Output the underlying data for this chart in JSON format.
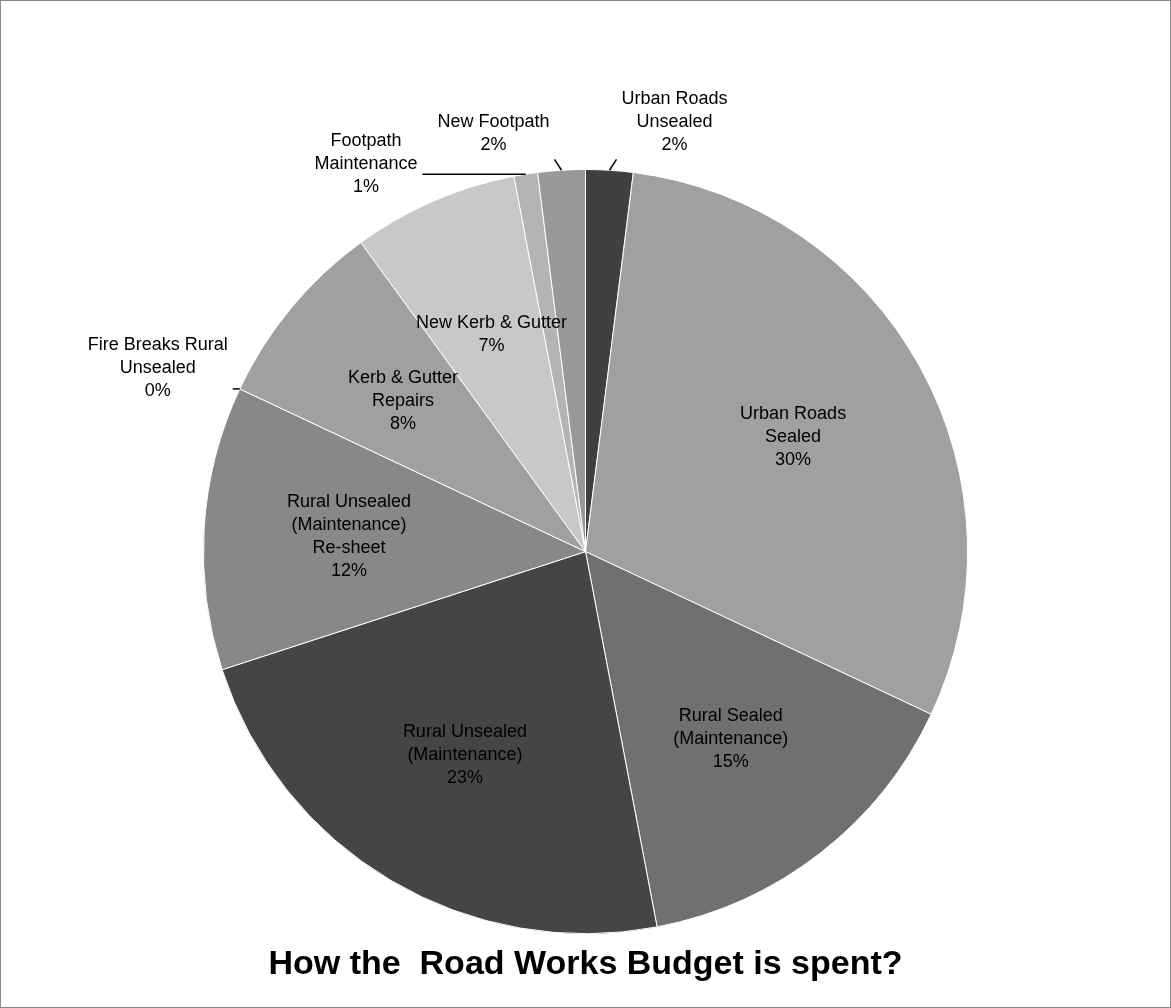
{
  "chart_data": {
    "type": "pie",
    "title": "How the  Road Works Budget is spent?",
    "categories": [
      "Urban Roads Unsealed",
      "Urban Roads Sealed",
      "Rural Sealed (Maintenance)",
      "Rural Unsealed (Maintenance)",
      "Rural Unsealed (Maintenance) Re-sheet",
      "Fire Breaks Rural Unsealed",
      "Kerb & Gutter Repairs",
      "New Kerb & Gutter",
      "Footpath Maintenance",
      "New Footpath"
    ],
    "values": [
      2,
      30,
      15,
      23,
      12,
      0,
      8,
      7,
      1,
      2
    ],
    "colors": [
      "#404040",
      "#a0a0a0",
      "#707070",
      "#454545",
      "#888888",
      "#c8c8c8",
      "#a0a0a0",
      "#c8c8c8",
      "#b4b4b4",
      "#989898"
    ],
    "value_labels": [
      "2%",
      "30%",
      "15%",
      "23%",
      "12%",
      "0%",
      "8%",
      "7%",
      "1%",
      "2%"
    ],
    "legend": false
  }
}
